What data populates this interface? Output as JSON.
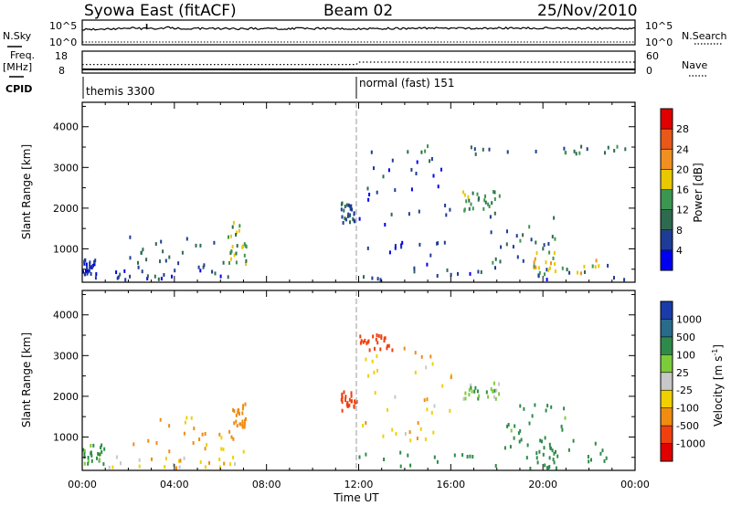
{
  "header": {
    "station": "Syowa East (fitACF)",
    "beam": "Beam 02",
    "date": "25/Nov/2010"
  },
  "top_panels": {
    "nsky_label": "N.Sky",
    "nsky_ticks": [
      "10^5",
      "10^0"
    ],
    "nsearch_label": "N.Search",
    "nsearch_ticks": [
      "10^5",
      "10^0"
    ],
    "freq_label": "Freq.",
    "freq_unit": "[MHz]",
    "freq_ticks": [
      "18",
      "8"
    ],
    "nave_label": "Nave",
    "nave_ticks": [
      "60",
      "0"
    ],
    "cpid_label": "CPID",
    "cpid_segments": [
      {
        "name": "themis 3300",
        "start_h": 0,
        "end_h": 12
      },
      {
        "name": "normal (fast) 151",
        "start_h": 12,
        "end_h": 24
      }
    ]
  },
  "x_axis": {
    "title": "Time UT",
    "ticks": [
      "00:00",
      "04:00",
      "08:00",
      "12:00",
      "16:00",
      "20:00",
      "00:00"
    ],
    "range_h": [
      0,
      24
    ]
  },
  "y_axis": {
    "title": "Slant Range [km]",
    "ticks": [
      "1000",
      "2000",
      "3000",
      "4000"
    ],
    "range_km": [
      180,
      4600
    ]
  },
  "power_colorbar": {
    "title": "Power [dB]",
    "labels": [
      "4",
      "8",
      "12",
      "16",
      "20",
      "24",
      "28"
    ],
    "colors": [
      "#0000f0",
      "#1e3c96",
      "#2e6a50",
      "#3c9650",
      "#e8c800",
      "#f09020",
      "#e85818",
      "#e00000"
    ]
  },
  "velocity_colorbar": {
    "title": "Velocity [m s",
    "title_sup": "-1",
    "title_end": "]",
    "labels": [
      "1000",
      "500",
      "100",
      "25",
      "-25",
      "-100",
      "-500",
      "-1000"
    ],
    "colors": [
      "#1a3caa",
      "#2a6a8a",
      "#2e8a4a",
      "#7ccc3a",
      "#c8c8c8",
      "#f0d000",
      "#f08c10",
      "#f04010",
      "#e00000"
    ]
  },
  "chart_data": [
    {
      "type": "line",
      "title": "N.Sky / N.Search",
      "x_unit": "hours UT",
      "ylim_log10": [
        0,
        5
      ],
      "series": [
        {
          "name": "N.Sky",
          "x": [
            0,
            2,
            2.8,
            4,
            8,
            12,
            16,
            20,
            24
          ],
          "y_log10": [
            3.6,
            3.8,
            5.0,
            3.8,
            3.8,
            3.8,
            3.9,
            3.9,
            3.8
          ]
        },
        {
          "name": "N.Search",
          "x": [
            0,
            6,
            12,
            18,
            24
          ],
          "y_log10": [
            0.4,
            0.4,
            0.4,
            0.4,
            0.4
          ]
        }
      ]
    },
    {
      "type": "line",
      "title": "Freq. / Nave",
      "series": [
        {
          "name": "Freq. [MHz]",
          "x": [
            0,
            12,
            24
          ],
          "y": [
            8,
            8,
            8
          ]
        },
        {
          "name": "Nave",
          "x": [
            0,
            11.9,
            12,
            24
          ],
          "y": [
            23,
            23,
            30,
            30
          ]
        }
      ]
    },
    {
      "type": "heatmap",
      "title": "Power [dB]",
      "x_unit": "hours UT",
      "y_unit": "km",
      "clusters": [
        {
          "x": [
            0,
            0.6
          ],
          "y": [
            350,
            700
          ],
          "value": 4
        },
        {
          "x": [
            0,
            7.2
          ],
          "y": [
            200,
            450
          ],
          "value": 6
        },
        {
          "x": [
            2,
            6.5
          ],
          "y": [
            500,
            1300
          ],
          "value": 8
        },
        {
          "x": [
            6.3,
            7.1
          ],
          "y": [
            600,
            1800
          ],
          "value": 14
        },
        {
          "x": [
            11.2,
            11.8
          ],
          "y": [
            1600,
            2100
          ],
          "value": 8
        },
        {
          "x": [
            12,
            24
          ],
          "y": [
            200,
            600
          ],
          "value": 6
        },
        {
          "x": [
            12,
            16
          ],
          "y": [
            800,
            3200
          ],
          "value": 5
        },
        {
          "x": [
            16.5,
            18.2
          ],
          "y": [
            1900,
            2400
          ],
          "value": 14
        },
        {
          "x": [
            17.5,
            20.5
          ],
          "y": [
            600,
            1900
          ],
          "value": 9
        },
        {
          "x": [
            19.5,
            22.5
          ],
          "y": [
            350,
            900
          ],
          "value": 18
        },
        {
          "x": [
            12,
            23.8
          ],
          "y": [
            3300,
            3500
          ],
          "value": 10
        }
      ]
    },
    {
      "type": "heatmap",
      "title": "Velocity [m s-1]",
      "x_unit": "hours UT",
      "y_unit": "km",
      "clusters": [
        {
          "x": [
            0,
            1
          ],
          "y": [
            300,
            800
          ],
          "value": 150
        },
        {
          "x": [
            1,
            7.2
          ],
          "y": [
            200,
            500
          ],
          "value": -60
        },
        {
          "x": [
            2,
            7
          ],
          "y": [
            600,
            1500
          ],
          "value": -120
        },
        {
          "x": [
            6.5,
            7.1
          ],
          "y": [
            1200,
            1800
          ],
          "value": -400
        },
        {
          "x": [
            11.2,
            11.9
          ],
          "y": [
            1600,
            2100
          ],
          "value": -700
        },
        {
          "x": [
            12,
            24
          ],
          "y": [
            200,
            600
          ],
          "value": 200
        },
        {
          "x": [
            12,
            16
          ],
          "y": [
            800,
            3200
          ],
          "value": -80
        },
        {
          "x": [
            16.5,
            18.2
          ],
          "y": [
            1900,
            2300
          ],
          "value": 60
        },
        {
          "x": [
            18,
            21
          ],
          "y": [
            500,
            1800
          ],
          "value": 150
        },
        {
          "x": [
            19.5,
            23
          ],
          "y": [
            350,
            900
          ],
          "value": 400
        },
        {
          "x": [
            12,
            13.5
          ],
          "y": [
            3100,
            3500
          ],
          "value": -900
        }
      ]
    }
  ]
}
